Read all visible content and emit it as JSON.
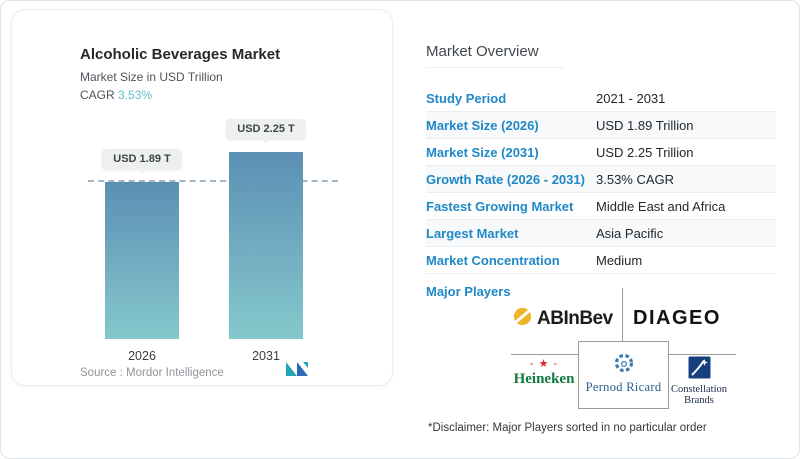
{
  "card": {
    "title": "Alcoholic Beverages Market",
    "subtitle": "Market Size in USD Trillion",
    "cagr_label": "CAGR ",
    "cagr_value": "3.53%",
    "source_text": "Source :  Mordor Intelligence"
  },
  "chart_data": {
    "type": "bar",
    "title": "Alcoholic Beverages Market",
    "ylabel": "Market Size in USD Trillion",
    "categories": [
      "2026",
      "2031"
    ],
    "values": [
      1.89,
      2.25
    ],
    "value_labels": [
      "USD 1.89 T",
      "USD 2.25 T"
    ],
    "reference_line": 1.89,
    "ylim": [
      0,
      2.6
    ],
    "grid": false,
    "bar_color_top": "#5b8fb4",
    "bar_color_bottom": "#85c8cc",
    "reference_line_color": "#a4b4c2"
  },
  "overview": {
    "heading": "Market Overview",
    "rows": [
      {
        "label": "Study Period",
        "value": "2021 - 2031"
      },
      {
        "label": "Market Size (2026)",
        "value": "USD 1.89 Trillion"
      },
      {
        "label": "Market Size (2031)",
        "value": "USD 2.25 Trillion"
      },
      {
        "label": "Growth Rate (2026 - 2031)",
        "value": "3.53% CAGR"
      },
      {
        "label": "Fastest Growing Market",
        "value": "Middle East and Africa"
      },
      {
        "label": "Largest Market",
        "value": "Asia Pacific"
      },
      {
        "label": "Market Concentration",
        "value": "Medium"
      }
    ],
    "major_players_label": "Major Players",
    "players": {
      "abinbev": "ABInBev",
      "diageo": "DIAGEO",
      "heineken": "Heineken",
      "heineken_star_row": "- ★ -",
      "pernod": "Pernod Ricard",
      "constellation_line1": "Constellation",
      "constellation_line2": "Brands"
    },
    "disclaimer": "*Disclaimer: Major Players sorted in no particular order"
  },
  "colors": {
    "accent_blue": "#2088c7",
    "teal": "#61c0c2",
    "heineken_green": "#0e7a3d",
    "heineken_red": "#d7282f",
    "pernod_blue": "#2b5d8e",
    "constellation_navy": "#16407c",
    "abinbev_gold": "#f0b429"
  }
}
